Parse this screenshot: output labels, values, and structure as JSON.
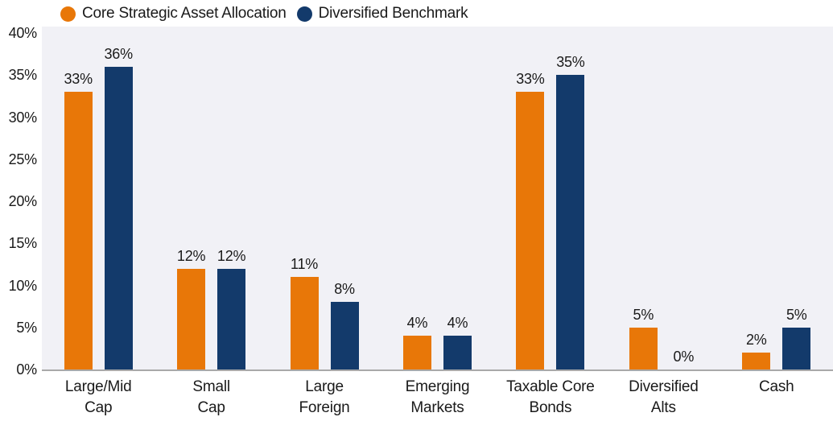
{
  "chart_data": {
    "type": "bar",
    "title": "",
    "xlabel": "",
    "ylabel": "",
    "categories": [
      "Large/Mid\nCap",
      "Small\nCap",
      "Large\nForeign",
      "Emerging\nMarkets",
      "Taxable Core\nBonds",
      "Diversified\nAlts",
      "Cash"
    ],
    "series": [
      {
        "name": "Core Strategic Asset Allocation",
        "color": "#E87708",
        "values": [
          33,
          12,
          11,
          4,
          33,
          5,
          2
        ],
        "labels": [
          "33%",
          "12%",
          "11%",
          "4%",
          "33%",
          "5%",
          "2%"
        ]
      },
      {
        "name": "Diversified Benchmark",
        "color": "#133A6B",
        "values": [
          36,
          12,
          8,
          4,
          35,
          0,
          5
        ],
        "labels": [
          "36%",
          "12%",
          "8%",
          "4%",
          "35%",
          "0%",
          "5%"
        ]
      }
    ],
    "y_ticks": [
      "40%",
      "35%",
      "30%",
      "25%",
      "20%",
      "15%",
      "10%",
      "5%",
      "0%"
    ],
    "ylim": [
      0,
      40
    ],
    "grid": false,
    "legend_position": "top-left",
    "plot_background": "#F1F1F6",
    "axis_line_color": "#A9A9A9",
    "text_color": "#1A1A1A"
  }
}
